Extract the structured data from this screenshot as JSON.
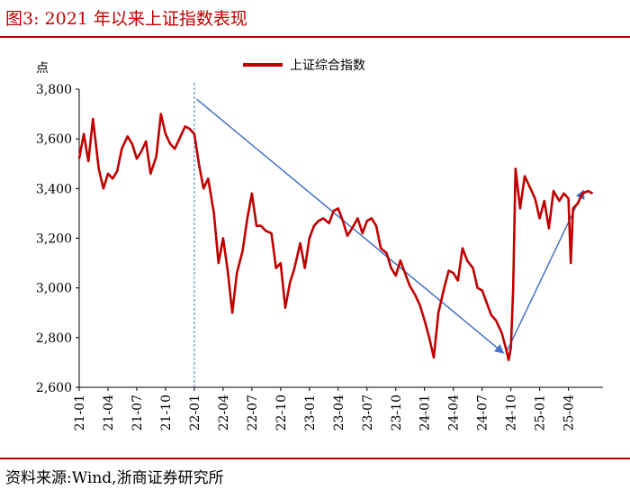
{
  "header": {
    "title": "图3:   2021 年以来上证指数表现"
  },
  "footer": {
    "source": "资料来源:Wind,浙商证券研究所"
  },
  "chart_data": {
    "type": "line",
    "title": "",
    "ylabel": "点",
    "xlabel": "",
    "ylim": [
      2600,
      3800
    ],
    "yticks": [
      "2,600",
      "2,800",
      "3,000",
      "3,200",
      "3,400",
      "3,600",
      "3,800"
    ],
    "yticks_values": [
      2600,
      2800,
      3000,
      3200,
      3400,
      3600,
      3800
    ],
    "xticks": [
      "21-01",
      "21-04",
      "21-07",
      "21-10",
      "22-01",
      "22-04",
      "22-07",
      "22-10",
      "23-01",
      "23-04",
      "23-07",
      "23-10",
      "24-01",
      "24-04",
      "24-07",
      "24-10",
      "25-01",
      "25-04"
    ],
    "legend": {
      "placement": "top-center"
    },
    "grid": false,
    "colors": {
      "series": "#c00000",
      "arrow": "#4472c4",
      "marker_line": "#4472c4"
    },
    "series": [
      {
        "name": "上证综合指数",
        "x": [
          2021.0,
          2021.04,
          2021.08,
          2021.12,
          2021.17,
          2021.21,
          2021.25,
          2021.29,
          2021.33,
          2021.37,
          2021.42,
          2021.46,
          2021.5,
          2021.54,
          2021.58,
          2021.62,
          2021.67,
          2021.71,
          2021.75,
          2021.79,
          2021.83,
          2021.87,
          2021.92,
          2021.96,
          2022.0,
          2022.04,
          2022.08,
          2022.12,
          2022.17,
          2022.21,
          2022.25,
          2022.29,
          2022.33,
          2022.37,
          2022.42,
          2022.46,
          2022.5,
          2022.54,
          2022.58,
          2022.62,
          2022.67,
          2022.71,
          2022.75,
          2022.79,
          2022.83,
          2022.87,
          2022.92,
          2022.96,
          2023.0,
          2023.04,
          2023.08,
          2023.12,
          2023.17,
          2023.21,
          2023.25,
          2023.29,
          2023.33,
          2023.37,
          2023.42,
          2023.46,
          2023.5,
          2023.54,
          2023.58,
          2023.62,
          2023.67,
          2023.71,
          2023.75,
          2023.79,
          2023.83,
          2023.87,
          2023.92,
          2023.96,
          2024.0,
          2024.04,
          2024.08,
          2024.12,
          2024.17,
          2024.21,
          2024.25,
          2024.29,
          2024.33,
          2024.37,
          2024.42,
          2024.46,
          2024.5,
          2024.54,
          2024.58,
          2024.62,
          2024.67,
          2024.71,
          2024.73,
          2024.75,
          2024.77,
          2024.79,
          2024.83,
          2024.87,
          2024.92,
          2024.96,
          2025.0,
          2025.04,
          2025.08,
          2025.12,
          2025.17,
          2025.21,
          2025.25,
          2025.27,
          2025.29,
          2025.33,
          2025.37,
          2025.42,
          2025.46
        ],
        "values": [
          3520,
          3620,
          3510,
          3680,
          3480,
          3400,
          3460,
          3440,
          3470,
          3560,
          3610,
          3580,
          3520,
          3550,
          3590,
          3460,
          3530,
          3700,
          3620,
          3580,
          3560,
          3600,
          3650,
          3640,
          3620,
          3500,
          3400,
          3440,
          3300,
          3100,
          3200,
          3070,
          2900,
          3060,
          3150,
          3280,
          3380,
          3250,
          3250,
          3230,
          3220,
          3080,
          3100,
          2920,
          3020,
          3080,
          3180,
          3080,
          3200,
          3250,
          3270,
          3280,
          3260,
          3310,
          3320,
          3270,
          3210,
          3240,
          3280,
          3220,
          3270,
          3280,
          3250,
          3160,
          3140,
          3080,
          3050,
          3110,
          3060,
          3010,
          2970,
          2930,
          2870,
          2800,
          2720,
          2900,
          3000,
          3070,
          3060,
          3030,
          3160,
          3110,
          3080,
          3000,
          2990,
          2940,
          2890,
          2870,
          2820,
          2750,
          2710,
          2760,
          3000,
          3480,
          3320,
          3450,
          3400,
          3360,
          3280,
          3350,
          3240,
          3390,
          3350,
          3380,
          3360,
          3100,
          3320,
          3340,
          3380,
          3390,
          3380
        ]
      }
    ],
    "annotations": {
      "vline_x": 2022.0,
      "arrows": [
        {
          "from": [
            2022.02,
            3760
          ],
          "to": [
            2024.68,
            2740
          ]
        },
        {
          "from": [
            2024.72,
            2750
          ],
          "to": [
            2025.38,
            3390
          ]
        }
      ]
    }
  }
}
